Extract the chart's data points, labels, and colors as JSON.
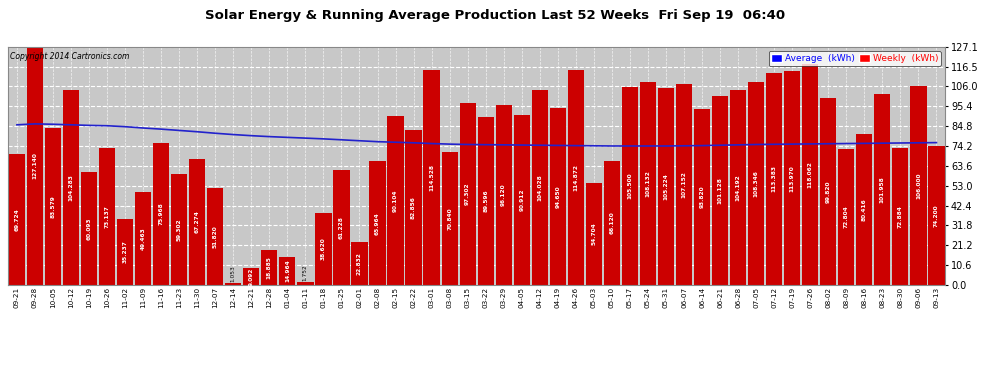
{
  "title": "Solar Energy & Running Average Production Last 52 Weeks  Fri Sep 19  06:40",
  "copyright": "Copyright 2014 Cartronics.com",
  "legend_avg": "Average  (kWh)",
  "legend_weekly": "Weekly  (kWh)",
  "ylabel_right_ticks": [
    0.0,
    10.6,
    21.2,
    31.8,
    42.4,
    53.0,
    63.6,
    74.2,
    84.8,
    95.4,
    106.0,
    116.5,
    127.1
  ],
  "bar_color": "#cc0000",
  "avg_line_color": "#2222cc",
  "background_color": "#ffffff",
  "plot_bg_color": "#c8c8c8",
  "grid_color": "#ffffff",
  "categories": [
    "09-21",
    "09-28",
    "10-05",
    "10-12",
    "10-19",
    "10-26",
    "11-02",
    "11-09",
    "11-16",
    "11-23",
    "11-30",
    "12-07",
    "12-14",
    "12-21",
    "12-28",
    "01-04",
    "01-11",
    "01-18",
    "01-25",
    "02-01",
    "02-08",
    "02-15",
    "02-22",
    "03-01",
    "03-08",
    "03-15",
    "03-22",
    "03-29",
    "04-05",
    "04-12",
    "04-19",
    "04-26",
    "05-03",
    "05-10",
    "05-17",
    "05-24",
    "05-31",
    "06-07",
    "06-14",
    "06-21",
    "06-28",
    "07-05",
    "07-12",
    "07-19",
    "07-26",
    "08-02",
    "08-09",
    "08-16",
    "08-23",
    "08-30",
    "09-06",
    "09-13"
  ],
  "weekly_values": [
    69.724,
    127.14,
    83.579,
    104.283,
    60.093,
    73.137,
    35.237,
    49.463,
    75.968,
    59.302,
    67.274,
    51.82,
    1.053,
    9.092,
    18.885,
    14.964,
    1.752,
    38.62,
    61.228,
    22.832,
    65.964,
    90.104,
    82.856,
    114.528,
    70.84,
    97.302,
    89.596,
    96.12,
    90.912,
    104.028,
    94.65,
    114.872,
    54.704,
    66.12,
    105.5,
    108.132,
    105.224,
    107.152,
    93.82,
    101.128,
    104.192,
    108.346,
    113.383,
    113.97,
    118.062,
    99.82,
    72.804,
    80.416,
    101.958,
    72.884,
    106.0,
    74.2
  ],
  "avg_values": [
    85.5,
    86.0,
    85.8,
    85.5,
    85.2,
    85.0,
    84.5,
    83.8,
    83.2,
    82.5,
    81.8,
    81.0,
    80.3,
    79.7,
    79.2,
    78.8,
    78.4,
    78.0,
    77.5,
    77.0,
    76.5,
    76.2,
    75.9,
    75.5,
    75.2,
    75.0,
    74.9,
    74.8,
    74.7,
    74.6,
    74.5,
    74.4,
    74.3,
    74.2,
    74.2,
    74.2,
    74.2,
    74.3,
    74.4,
    74.6,
    74.8,
    75.0,
    75.1,
    75.2,
    75.3,
    75.4,
    75.5,
    75.6,
    75.7,
    75.8,
    75.9,
    76.0
  ]
}
